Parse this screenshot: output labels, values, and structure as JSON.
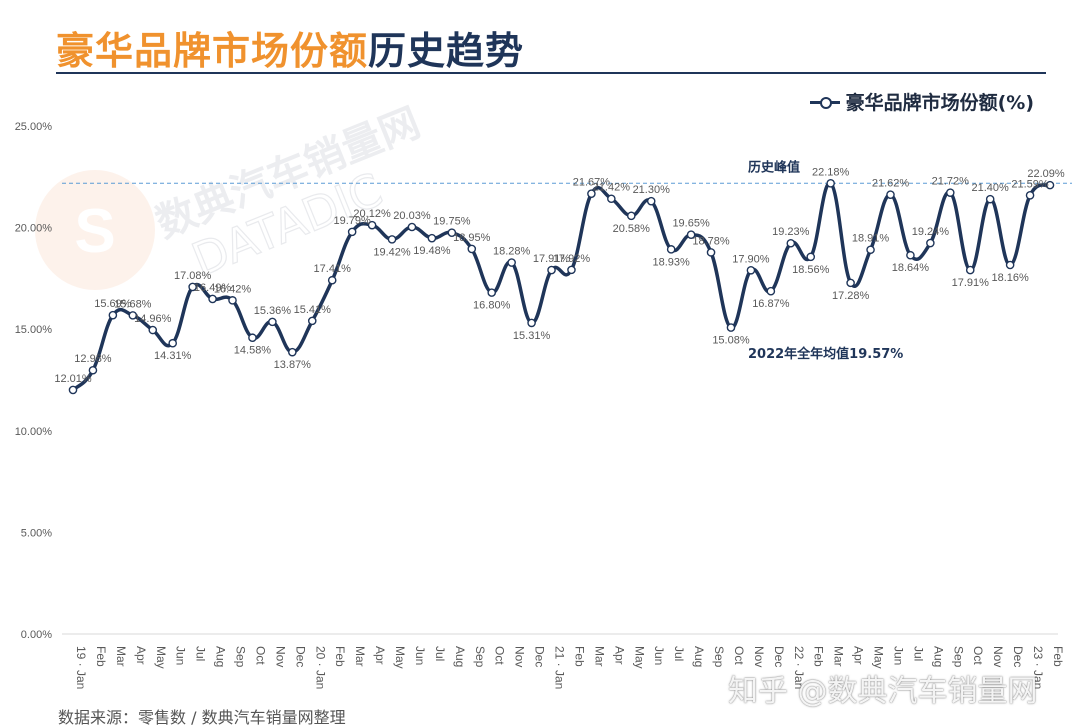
{
  "title": {
    "part1": "豪华品牌市场份额",
    "part2": "历史趋势"
  },
  "watermark": {
    "brand_cn": "数典汽车销量网",
    "brand_en": "DATADIC"
  },
  "footer": "数据来源：零售数 / 数典汽车销量网整理",
  "zhihu_watermark": "知乎 @数典汽车销量网",
  "colors": {
    "orange": "#F0922E",
    "navy": "#1F3559",
    "ref_line": "#5B9BD5"
  },
  "chart_data": {
    "type": "line",
    "categories": [
      "19 · Jan",
      "Feb",
      "Mar",
      "Apr",
      "May",
      "Jun",
      "Jul",
      "Aug",
      "Sep",
      "Oct",
      "Nov",
      "Dec",
      "20 · Jan",
      "Feb",
      "Mar",
      "Apr",
      "May",
      "Jun",
      "Jul",
      "Aug",
      "Sep",
      "Oct",
      "Nov",
      "Dec",
      "21 · Jan",
      "Feb",
      "Mar",
      "Apr",
      "May",
      "Jun",
      "Jul",
      "Aug",
      "Sep",
      "Oct",
      "Nov",
      "Dec",
      "22 · Jan",
      "Feb",
      "Mar",
      "Apr",
      "May",
      "Jun",
      "Jul",
      "Aug",
      "Sep",
      "Oct",
      "Nov",
      "Dec",
      "23 · Jan",
      "Feb"
    ],
    "series": [
      {
        "name": "豪华品牌市场份额(%)",
        "values": [
          12.01,
          12.98,
          15.69,
          15.68,
          14.96,
          14.31,
          17.08,
          16.49,
          16.42,
          14.58,
          15.36,
          13.87,
          15.41,
          17.41,
          19.79,
          20.12,
          19.42,
          20.03,
          19.48,
          19.75,
          18.95,
          16.8,
          18.28,
          15.31,
          17.91,
          17.92,
          21.67,
          21.42,
          20.58,
          21.3,
          18.93,
          19.65,
          18.78,
          15.08,
          17.9,
          16.87,
          19.23,
          18.56,
          22.18,
          17.28,
          18.91,
          21.62,
          18.64,
          19.24,
          21.72,
          17.91,
          21.4,
          18.16,
          21.59,
          22.09
        ],
        "labels": [
          "12.01%",
          "12.98%",
          "15.69%",
          "15.68%",
          "14.96%",
          "14.31%",
          "17.08%",
          "16.49%",
          "16.42%",
          "14.58%",
          "15.36%",
          "13.87%",
          "15.41%",
          "17.41%",
          "19.79%",
          "20.12%",
          "19.42%",
          "20.03%",
          "19.48%",
          "19.75%",
          "18.95%",
          "16.80%",
          "18.28%",
          "15.31%",
          "17.91%",
          "17.92%",
          "21.67%",
          "21.42%",
          "20.58%",
          "21.30%",
          "18.93%",
          "19.65%",
          "18.78%",
          "15.08%",
          "17.90%",
          "16.87%",
          "19.23%",
          "18.56%",
          "22.18%",
          "17.28%",
          "18.91%",
          "21.62%",
          "18.64%",
          "19.24%",
          "21.72%",
          "17.91%",
          "21.40%",
          "18.16%",
          "21.59%",
          "22.09%"
        ]
      }
    ],
    "y_ticks": [
      "0.00%",
      "5.00%",
      "10.00%",
      "15.00%",
      "20.00%",
      "25.00%"
    ],
    "ylim": [
      0,
      25
    ],
    "grid": false,
    "legend_position": "top-right",
    "reference_line": {
      "value": 22.18,
      "label": "历史峰值"
    },
    "annotations": [
      {
        "text": "2022年全年均值19.57%",
        "at_category": 33
      }
    ]
  }
}
